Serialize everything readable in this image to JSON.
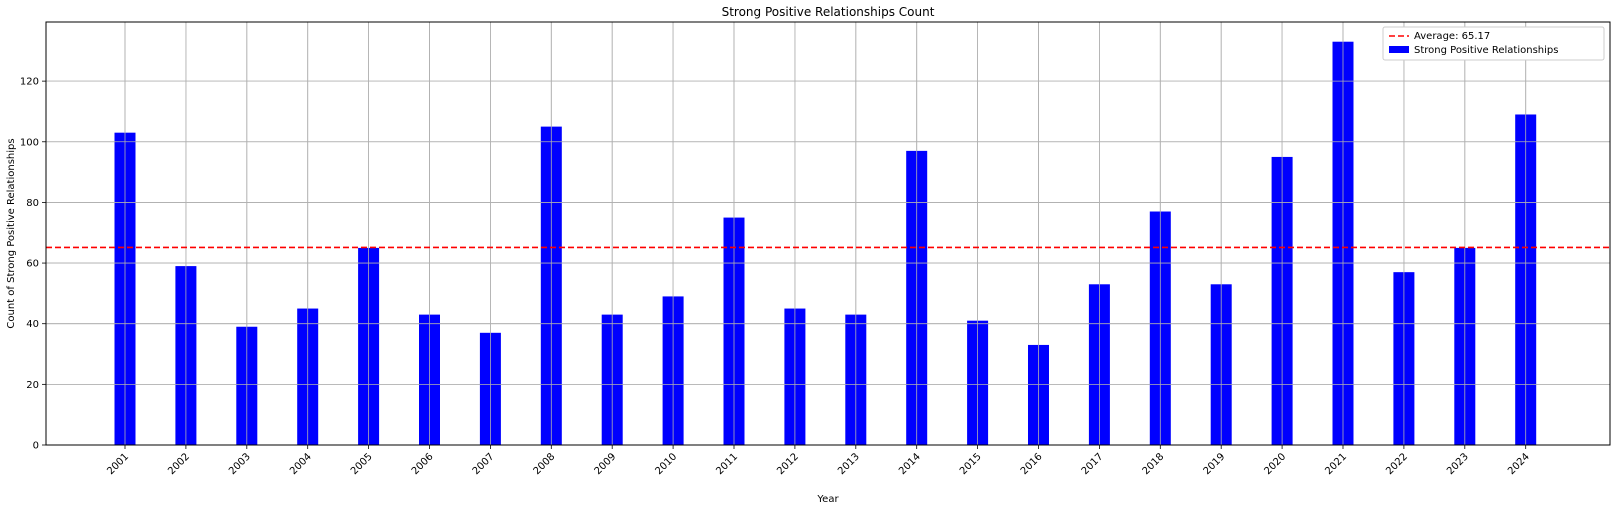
{
  "chart_data": {
    "type": "bar",
    "title": "Strong Positive Relationships Count",
    "xlabel": "Year",
    "ylabel": "Count of Strong Positive Relationships",
    "categories": [
      "2001",
      "2002",
      "2003",
      "2004",
      "2005",
      "2006",
      "2007",
      "2008",
      "2009",
      "2010",
      "2011",
      "2012",
      "2013",
      "2014",
      "2015",
      "2016",
      "2017",
      "2018",
      "2019",
      "2020",
      "2021",
      "2022",
      "2023",
      "2024"
    ],
    "series": [
      {
        "name": "Strong Positive Relationships",
        "color": "#0000ff",
        "values": [
          103,
          59,
          39,
          45,
          65,
          43,
          37,
          105,
          43,
          49,
          75,
          45,
          43,
          97,
          41,
          33,
          53,
          77,
          53,
          95,
          133,
          57,
          65,
          109
        ]
      }
    ],
    "average": {
      "value": 65.17,
      "label": "Average: 65.17",
      "color": "#ff0000"
    },
    "ylim": [
      0,
      140
    ],
    "yticks": [
      0,
      20,
      40,
      60,
      80,
      100,
      120
    ],
    "grid": true,
    "legend_position": "top-right"
  }
}
